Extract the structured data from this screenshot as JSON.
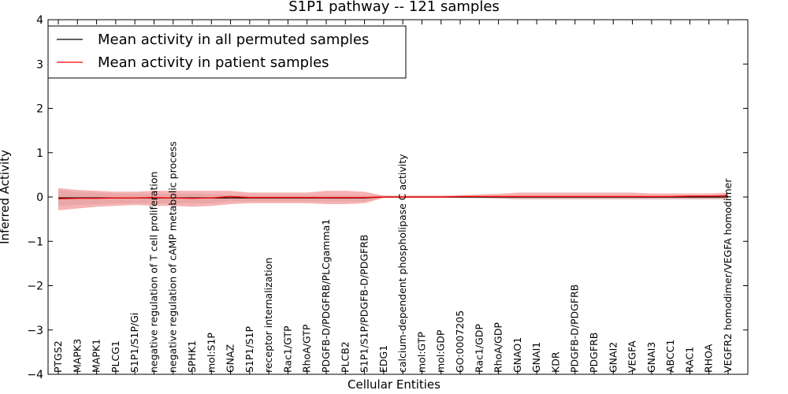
{
  "chart_data": {
    "type": "line",
    "title": "S1P1 pathway -- 121 samples",
    "xlabel": "Cellular Entities",
    "ylabel": "Inferred Activity",
    "ylim": [
      -4,
      4
    ],
    "yticks": [
      4,
      3,
      2,
      1,
      0,
      -1,
      -2,
      -3,
      -4
    ],
    "ytick_labels": [
      "4",
      "3",
      "2",
      "1",
      "0",
      "−1",
      "−2",
      "−3",
      "−4"
    ],
    "grid": false,
    "legend_position": "top-left",
    "categories": [
      "PTGS2",
      "MAPK3",
      "MAPK1",
      "PLCG1",
      "S1P1/S1P/Gi",
      "negative regulation of T cell proliferation",
      "negative regulation of cAMP metabolic process",
      "SPHK1",
      "mol:S1P",
      "GNAZ",
      "S1P1/S1P",
      "receptor internalization",
      "Rac1/GTP",
      "RhoA/GTP",
      "PDGFB-D/PDGFRB/PLCgamma1",
      "PLCB2",
      "S1P1/S1P/PDGFB-D/PDGFRB",
      "EDG1",
      "calcium-dependent phospholipase C activity",
      "mol:GTP",
      "mol:GDP",
      "GO:0007205",
      "Rac1/GDP",
      "RhoA/GDP",
      "GNAO1",
      "GNAI1",
      "KDR",
      "PDGFB-D/PDGFRB",
      "PDGFRB",
      "GNAI2",
      "VEGFA",
      "GNAI3",
      "ABCC1",
      "RAC1",
      "RHOA",
      "VEGFR2 homodimer/VEGFA homodimer"
    ],
    "series": [
      {
        "name": "Mean activity in all permuted samples",
        "color": "#000000",
        "values": [
          -0.02,
          -0.02,
          -0.02,
          -0.02,
          -0.02,
          -0.02,
          -0.02,
          -0.02,
          -0.02,
          -0.02,
          -0.02,
          -0.02,
          -0.02,
          -0.02,
          -0.02,
          -0.02,
          -0.02,
          0.0,
          0.0,
          0.0,
          0.0,
          0.0,
          0.0,
          0.0,
          0.0,
          0.0,
          0.0,
          0.0,
          0.0,
          0.0,
          0.0,
          0.0,
          0.0,
          0.0,
          0.0,
          0.0
        ],
        "lower": [
          -0.2,
          -0.18,
          -0.16,
          -0.15,
          -0.14,
          -0.14,
          -0.14,
          -0.15,
          -0.14,
          -0.1,
          -0.1,
          -0.1,
          -0.1,
          -0.1,
          -0.1,
          -0.1,
          -0.1,
          -0.02,
          -0.02,
          -0.02,
          -0.02,
          -0.02,
          -0.03,
          -0.04,
          -0.06,
          -0.06,
          -0.06,
          -0.06,
          -0.06,
          -0.06,
          -0.06,
          -0.06,
          -0.06,
          -0.06,
          -0.06,
          -0.06
        ],
        "upper": [
          0.15,
          0.12,
          0.1,
          0.08,
          0.07,
          0.07,
          0.07,
          0.08,
          0.06,
          0.05,
          0.04,
          0.04,
          0.04,
          0.04,
          0.04,
          0.04,
          0.04,
          0.02,
          0.02,
          0.02,
          0.02,
          0.02,
          0.02,
          0.02,
          0.02,
          0.02,
          0.02,
          0.02,
          0.02,
          0.02,
          0.02,
          0.02,
          0.02,
          0.02,
          0.02,
          0.02
        ]
      },
      {
        "name": "Mean activity in patient samples",
        "color": "#ff0000",
        "values": [
          -0.04,
          -0.03,
          -0.03,
          -0.02,
          -0.02,
          -0.01,
          -0.02,
          -0.03,
          -0.02,
          0.01,
          -0.01,
          -0.01,
          -0.01,
          -0.01,
          -0.01,
          -0.01,
          -0.01,
          0.0,
          0.0,
          0.0,
          0.0,
          0.01,
          0.01,
          0.01,
          0.01,
          0.01,
          0.01,
          0.01,
          0.01,
          0.01,
          0.01,
          0.01,
          0.01,
          0.02,
          0.02,
          0.03
        ],
        "lower": [
          -0.3,
          -0.26,
          -0.22,
          -0.2,
          -0.18,
          -0.2,
          -0.2,
          -0.22,
          -0.2,
          -0.16,
          -0.14,
          -0.14,
          -0.14,
          -0.14,
          -0.16,
          -0.16,
          -0.14,
          -0.02,
          -0.02,
          -0.02,
          -0.02,
          -0.02,
          -0.02,
          -0.03,
          -0.04,
          -0.04,
          -0.04,
          -0.04,
          -0.04,
          -0.04,
          -0.04,
          -0.04,
          -0.04,
          -0.04,
          -0.04,
          -0.04
        ],
        "upper": [
          0.2,
          0.16,
          0.14,
          0.12,
          0.12,
          0.14,
          0.14,
          0.14,
          0.14,
          0.14,
          0.1,
          0.1,
          0.1,
          0.1,
          0.14,
          0.14,
          0.12,
          0.03,
          0.03,
          0.03,
          0.03,
          0.04,
          0.06,
          0.07,
          0.1,
          0.1,
          0.1,
          0.1,
          0.1,
          0.1,
          0.1,
          0.08,
          0.08,
          0.08,
          0.08,
          0.1
        ]
      }
    ]
  }
}
